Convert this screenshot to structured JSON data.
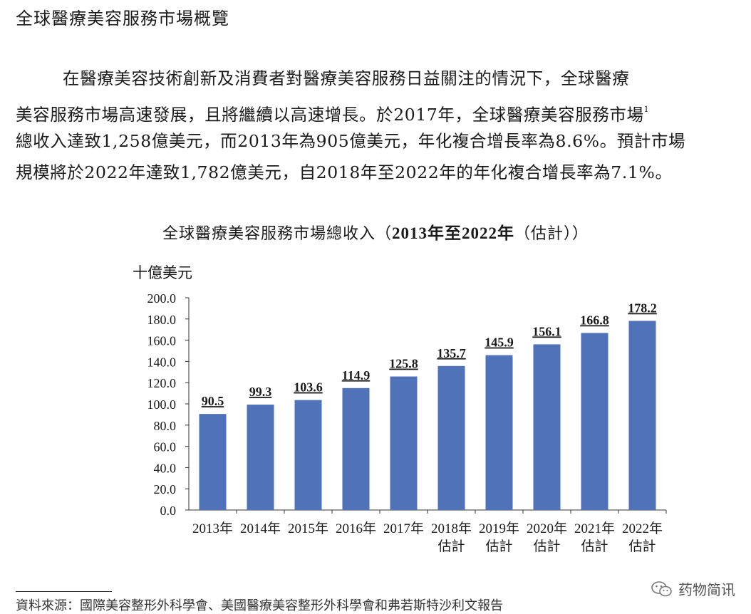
{
  "page": {
    "section_title": "全球醫療美容服務市場概覽",
    "paragraph_lines": [
      "在醫療美容技術創新及消費者對醫療美容服務日益關注的情況下，全球醫療",
      "美容服務市場高速發展，且將繼續以高速增長。於2017年，全球醫療美容服務市場",
      "總收入達致1,258億美元，而2013年為905億美元，年化複合增長率為8.6%。預計市場",
      "規模將於2022年達致1,782億美元，自2018年至2022年的年化複合增長率為7.1%。"
    ],
    "footnote_mark": "1",
    "footnote_text": "資料來源：國際美容整形外科學會、美國醫療美容整形外科學會和弗若斯特沙利文報告",
    "watermark": "药物简讯"
  },
  "chart_data": {
    "type": "bar",
    "title_prefix": "全球醫療美容服務市場總收入（",
    "title_years": "2013年至2022年",
    "title_suffix": "（估計））",
    "ylabel": "十億美元",
    "ylim": [
      0,
      200
    ],
    "yticks": [
      "0.0",
      "20.0",
      "40.0",
      "60.0",
      "80.0",
      "100.0",
      "120.0",
      "140.0",
      "160.0",
      "180.0",
      "200.0"
    ],
    "categories": [
      "2013年",
      "2014年",
      "2015年",
      "2016年",
      "2017年",
      "2018年",
      "2019年",
      "2020年",
      "2021年",
      "2022年"
    ],
    "estimate_label": "估計",
    "estimated": [
      false,
      false,
      false,
      false,
      false,
      true,
      true,
      true,
      true,
      true
    ],
    "values": [
      90.5,
      99.3,
      103.6,
      114.9,
      125.8,
      135.7,
      145.9,
      156.1,
      166.8,
      178.2
    ],
    "value_labels": [
      "90.5",
      "99.3",
      "103.6",
      "114.9",
      "125.8",
      "135.7",
      "145.9",
      "156.1",
      "166.8",
      "178.2"
    ],
    "bar_color": "#4f72b8",
    "grid": false,
    "legend": "none"
  }
}
